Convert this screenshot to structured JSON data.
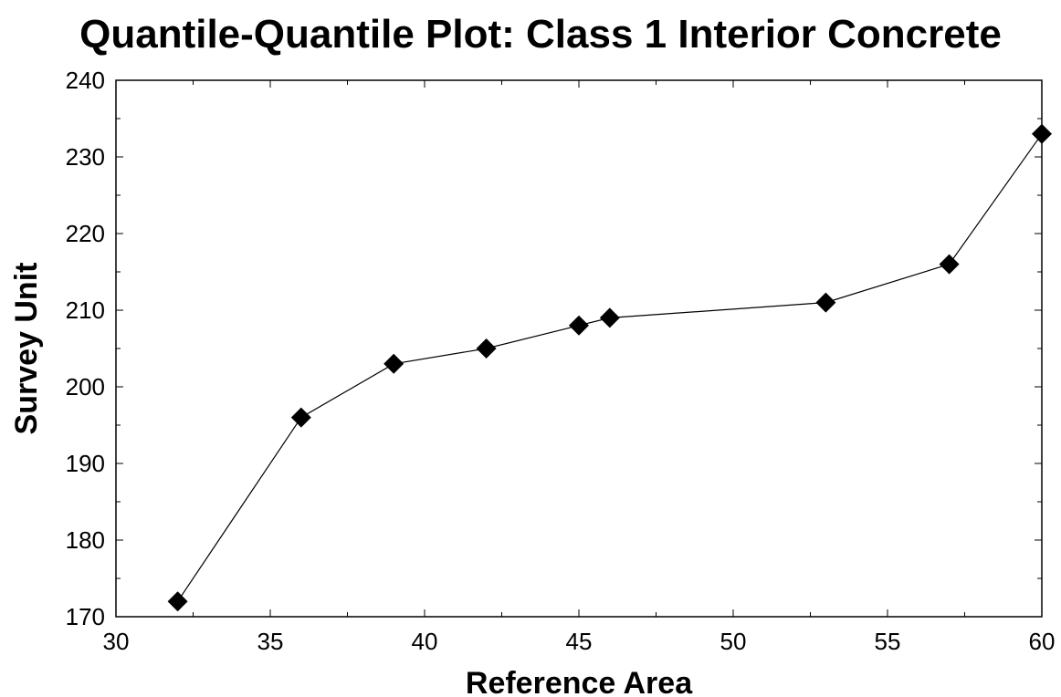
{
  "chart_data": {
    "type": "line",
    "title": "Quantile-Quantile Plot: Class 1 Interior Concrete",
    "xlabel": "Reference Area",
    "ylabel": "Survey Unit",
    "xlim": [
      30,
      60
    ],
    "ylim": [
      170,
      240
    ],
    "x_ticks": [
      30,
      35,
      40,
      45,
      50,
      55,
      60
    ],
    "y_ticks": [
      170,
      180,
      190,
      200,
      210,
      220,
      230,
      240
    ],
    "x_minor_step": 2.5,
    "y_minor_step": 5,
    "grid": false,
    "marker": "diamond",
    "colors": {
      "series": "#000000",
      "frame": "#000000",
      "background": "#ffffff"
    },
    "points": [
      {
        "x": 32,
        "y": 172
      },
      {
        "x": 36,
        "y": 196
      },
      {
        "x": 39,
        "y": 203
      },
      {
        "x": 42,
        "y": 205
      },
      {
        "x": 45,
        "y": 208
      },
      {
        "x": 46,
        "y": 209
      },
      {
        "x": 53,
        "y": 211
      },
      {
        "x": 57,
        "y": 216
      },
      {
        "x": 60,
        "y": 233
      }
    ]
  }
}
